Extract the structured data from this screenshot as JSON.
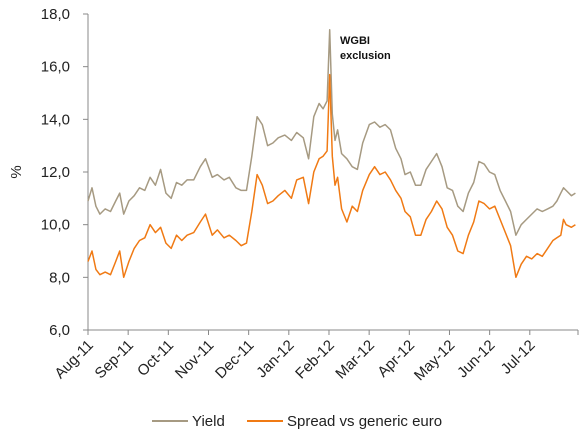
{
  "chart_data": {
    "type": "line",
    "xlabel": "",
    "ylabel": "%",
    "ylim": [
      6.0,
      18.0
    ],
    "y_ticks": [
      "6,0",
      "8,0",
      "10,0",
      "12,0",
      "14,0",
      "16,0",
      "18,0"
    ],
    "x_ticks": [
      "Aug-11",
      "Sep-11",
      "Oct-11",
      "Nov-11",
      "Dec-11",
      "Jan-12",
      "Feb-12",
      "Mar-12",
      "Apr-12",
      "May-12",
      "Jun-12",
      "Jul-12"
    ],
    "x_range": [
      "2011-08-01",
      "2012-08-06"
    ],
    "grid": false,
    "legend_position": "bottom-center",
    "annotation": {
      "lines": [
        "WGBI",
        "exclusion"
      ],
      "date": "2012-01-31"
    },
    "series": [
      {
        "name": "Yield",
        "color": "#a69a82",
        "points": [
          [
            "2011-08-01",
            10.9
          ],
          [
            "2011-08-04",
            11.4
          ],
          [
            "2011-08-07",
            10.7
          ],
          [
            "2011-08-10",
            10.4
          ],
          [
            "2011-08-14",
            10.6
          ],
          [
            "2011-08-18",
            10.5
          ],
          [
            "2011-08-22",
            10.9
          ],
          [
            "2011-08-25",
            11.2
          ],
          [
            "2011-08-28",
            10.4
          ],
          [
            "2011-09-01",
            10.9
          ],
          [
            "2011-09-05",
            11.1
          ],
          [
            "2011-09-09",
            11.4
          ],
          [
            "2011-09-13",
            11.3
          ],
          [
            "2011-09-17",
            11.8
          ],
          [
            "2011-09-21",
            11.5
          ],
          [
            "2011-09-25",
            12.1
          ],
          [
            "2011-09-29",
            11.2
          ],
          [
            "2011-10-03",
            11.0
          ],
          [
            "2011-10-07",
            11.6
          ],
          [
            "2011-10-11",
            11.5
          ],
          [
            "2011-10-15",
            11.7
          ],
          [
            "2011-10-20",
            11.7
          ],
          [
            "2011-10-25",
            12.2
          ],
          [
            "2011-10-29",
            12.5
          ],
          [
            "2011-11-03",
            11.8
          ],
          [
            "2011-11-07",
            11.9
          ],
          [
            "2011-11-12",
            11.7
          ],
          [
            "2011-11-16",
            11.8
          ],
          [
            "2011-11-21",
            11.4
          ],
          [
            "2011-11-25",
            11.3
          ],
          [
            "2011-11-29",
            11.3
          ],
          [
            "2011-12-03",
            12.6
          ],
          [
            "2011-12-07",
            14.1
          ],
          [
            "2011-12-11",
            13.8
          ],
          [
            "2011-12-15",
            13.0
          ],
          [
            "2011-12-19",
            13.1
          ],
          [
            "2011-12-23",
            13.3
          ],
          [
            "2011-12-28",
            13.4
          ],
          [
            "2012-01-02",
            13.2
          ],
          [
            "2012-01-06",
            13.5
          ],
          [
            "2012-01-11",
            13.3
          ],
          [
            "2012-01-15",
            12.5
          ],
          [
            "2012-01-19",
            14.1
          ],
          [
            "2012-01-23",
            14.6
          ],
          [
            "2012-01-26",
            14.4
          ],
          [
            "2012-01-29",
            14.7
          ],
          [
            "2012-01-31",
            17.4
          ],
          [
            "2012-02-02",
            14.2
          ],
          [
            "2012-02-04",
            13.2
          ],
          [
            "2012-02-06",
            13.6
          ],
          [
            "2012-02-09",
            12.7
          ],
          [
            "2012-02-13",
            12.5
          ],
          [
            "2012-02-17",
            12.2
          ],
          [
            "2012-02-21",
            12.1
          ],
          [
            "2012-02-25",
            13.1
          ],
          [
            "2012-03-01",
            13.8
          ],
          [
            "2012-03-05",
            13.9
          ],
          [
            "2012-03-09",
            13.7
          ],
          [
            "2012-03-13",
            13.8
          ],
          [
            "2012-03-17",
            13.6
          ],
          [
            "2012-03-21",
            12.9
          ],
          [
            "2012-03-25",
            12.5
          ],
          [
            "2012-03-28",
            11.9
          ],
          [
            "2012-04-01",
            12.0
          ],
          [
            "2012-04-05",
            11.5
          ],
          [
            "2012-04-09",
            11.5
          ],
          [
            "2012-04-13",
            12.1
          ],
          [
            "2012-04-17",
            12.4
          ],
          [
            "2012-04-21",
            12.7
          ],
          [
            "2012-04-25",
            12.2
          ],
          [
            "2012-04-29",
            11.4
          ],
          [
            "2012-05-03",
            11.3
          ],
          [
            "2012-05-07",
            10.7
          ],
          [
            "2012-05-11",
            10.5
          ],
          [
            "2012-05-15",
            11.2
          ],
          [
            "2012-05-19",
            11.6
          ],
          [
            "2012-05-23",
            12.4
          ],
          [
            "2012-05-27",
            12.3
          ],
          [
            "2012-05-31",
            12.0
          ],
          [
            "2012-06-04",
            11.9
          ],
          [
            "2012-06-08",
            11.3
          ],
          [
            "2012-06-12",
            10.9
          ],
          [
            "2012-06-16",
            10.5
          ],
          [
            "2012-06-20",
            9.6
          ],
          [
            "2012-06-24",
            10.0
          ],
          [
            "2012-06-28",
            10.2
          ],
          [
            "2012-07-02",
            10.4
          ],
          [
            "2012-07-06",
            10.6
          ],
          [
            "2012-07-10",
            10.5
          ],
          [
            "2012-07-14",
            10.6
          ],
          [
            "2012-07-18",
            10.7
          ],
          [
            "2012-07-21",
            10.9
          ],
          [
            "2012-07-24",
            11.2
          ],
          [
            "2012-07-26",
            11.4
          ],
          [
            "2012-07-28",
            11.3
          ],
          [
            "2012-08-01",
            11.1
          ],
          [
            "2012-08-04",
            11.2
          ]
        ]
      },
      {
        "name": "Spread vs generic euro",
        "color": "#f07a14",
        "points": [
          [
            "2011-08-01",
            8.6
          ],
          [
            "2011-08-04",
            9.0
          ],
          [
            "2011-08-07",
            8.3
          ],
          [
            "2011-08-10",
            8.1
          ],
          [
            "2011-08-14",
            8.2
          ],
          [
            "2011-08-18",
            8.1
          ],
          [
            "2011-08-22",
            8.6
          ],
          [
            "2011-08-25",
            9.0
          ],
          [
            "2011-08-28",
            8.0
          ],
          [
            "2011-09-01",
            8.6
          ],
          [
            "2011-09-05",
            9.1
          ],
          [
            "2011-09-09",
            9.4
          ],
          [
            "2011-09-13",
            9.5
          ],
          [
            "2011-09-17",
            10.0
          ],
          [
            "2011-09-21",
            9.7
          ],
          [
            "2011-09-25",
            9.9
          ],
          [
            "2011-09-29",
            9.3
          ],
          [
            "2011-10-03",
            9.1
          ],
          [
            "2011-10-07",
            9.6
          ],
          [
            "2011-10-11",
            9.4
          ],
          [
            "2011-10-15",
            9.6
          ],
          [
            "2011-10-20",
            9.7
          ],
          [
            "2011-10-25",
            10.1
          ],
          [
            "2011-10-29",
            10.4
          ],
          [
            "2011-11-03",
            9.6
          ],
          [
            "2011-11-07",
            9.8
          ],
          [
            "2011-11-12",
            9.5
          ],
          [
            "2011-11-16",
            9.6
          ],
          [
            "2011-11-21",
            9.4
          ],
          [
            "2011-11-25",
            9.2
          ],
          [
            "2011-11-29",
            9.3
          ],
          [
            "2011-12-03",
            10.5
          ],
          [
            "2011-12-07",
            11.9
          ],
          [
            "2011-12-11",
            11.5
          ],
          [
            "2011-12-15",
            10.8
          ],
          [
            "2011-12-19",
            10.9
          ],
          [
            "2011-12-23",
            11.1
          ],
          [
            "2011-12-28",
            11.3
          ],
          [
            "2012-01-02",
            11.0
          ],
          [
            "2012-01-06",
            11.7
          ],
          [
            "2012-01-11",
            11.8
          ],
          [
            "2012-01-15",
            10.8
          ],
          [
            "2012-01-19",
            12.0
          ],
          [
            "2012-01-23",
            12.5
          ],
          [
            "2012-01-26",
            12.6
          ],
          [
            "2012-01-29",
            12.8
          ],
          [
            "2012-01-31",
            15.7
          ],
          [
            "2012-02-02",
            12.6
          ],
          [
            "2012-02-04",
            11.5
          ],
          [
            "2012-02-06",
            11.8
          ],
          [
            "2012-02-09",
            10.6
          ],
          [
            "2012-02-13",
            10.1
          ],
          [
            "2012-02-17",
            10.7
          ],
          [
            "2012-02-21",
            10.5
          ],
          [
            "2012-02-25",
            11.3
          ],
          [
            "2012-03-01",
            11.9
          ],
          [
            "2012-03-05",
            12.2
          ],
          [
            "2012-03-09",
            11.9
          ],
          [
            "2012-03-13",
            12.0
          ],
          [
            "2012-03-17",
            11.7
          ],
          [
            "2012-03-21",
            11.3
          ],
          [
            "2012-03-25",
            11.0
          ],
          [
            "2012-03-28",
            10.5
          ],
          [
            "2012-04-01",
            10.3
          ],
          [
            "2012-04-05",
            9.6
          ],
          [
            "2012-04-09",
            9.6
          ],
          [
            "2012-04-13",
            10.2
          ],
          [
            "2012-04-17",
            10.5
          ],
          [
            "2012-04-21",
            10.9
          ],
          [
            "2012-04-25",
            10.6
          ],
          [
            "2012-04-29",
            9.9
          ],
          [
            "2012-05-03",
            9.6
          ],
          [
            "2012-05-07",
            9.0
          ],
          [
            "2012-05-11",
            8.9
          ],
          [
            "2012-05-15",
            9.6
          ],
          [
            "2012-05-19",
            10.1
          ],
          [
            "2012-05-23",
            10.9
          ],
          [
            "2012-05-27",
            10.8
          ],
          [
            "2012-05-31",
            10.6
          ],
          [
            "2012-06-04",
            10.7
          ],
          [
            "2012-06-08",
            10.2
          ],
          [
            "2012-06-12",
            9.7
          ],
          [
            "2012-06-16",
            9.2
          ],
          [
            "2012-06-20",
            8.0
          ],
          [
            "2012-06-24",
            8.5
          ],
          [
            "2012-06-28",
            8.8
          ],
          [
            "2012-07-02",
            8.7
          ],
          [
            "2012-07-06",
            8.9
          ],
          [
            "2012-07-10",
            8.8
          ],
          [
            "2012-07-14",
            9.1
          ],
          [
            "2012-07-18",
            9.4
          ],
          [
            "2012-07-21",
            9.5
          ],
          [
            "2012-07-24",
            9.6
          ],
          [
            "2012-07-26",
            10.2
          ],
          [
            "2012-07-28",
            10.0
          ],
          [
            "2012-08-01",
            9.9
          ],
          [
            "2012-08-04",
            10.0
          ]
        ]
      }
    ]
  }
}
